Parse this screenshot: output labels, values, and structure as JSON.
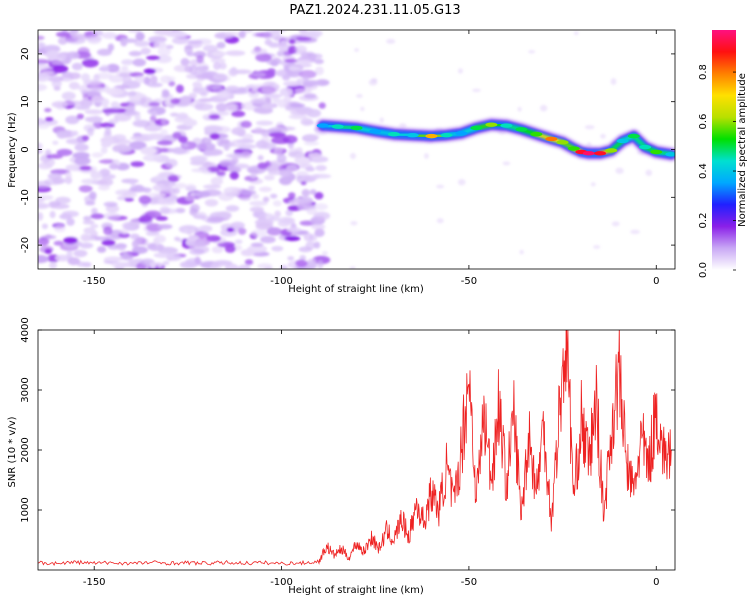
{
  "title": "PAZ1.2024.231.11.05.G13",
  "chart_data": [
    {
      "type": "heatmap",
      "title": "PAZ1.2024.231.11.05.G13",
      "xlabel": "Height of straight line (km)",
      "ylabel": "Frequency (Hz)",
      "xlim": [
        -165,
        5
      ],
      "ylim": [
        -25,
        25
      ],
      "x_ticks": [
        -150,
        -100,
        -50,
        0
      ],
      "y_ticks": [
        -20,
        -10,
        0,
        10,
        20
      ],
      "colorbar": {
        "label": "Normalized spectral amplitude",
        "range": [
          0.0,
          0.97
        ],
        "ticks": [
          0.0,
          0.2,
          0.4,
          0.6,
          0.8
        ],
        "colors": [
          "#ffffff",
          "#c9a8f5",
          "#8a20e8",
          "#2020ff",
          "#00a8ff",
          "#00e0d0",
          "#00e000",
          "#b8e000",
          "#ffe000",
          "#ff8000",
          "#ff1010",
          "#ff1080"
        ]
      },
      "noise_region": {
        "x_range": [
          -165,
          -89
        ],
        "y_range": [
          -25,
          25
        ],
        "typical_amplitude": 0.08
      },
      "signal_track": {
        "x": [
          -89,
          -85,
          -80,
          -75,
          -70,
          -65,
          -60,
          -56,
          -52,
          -48,
          -44,
          -40,
          -36,
          -32,
          -28,
          -25,
          -22,
          -20,
          -18,
          -15,
          -12,
          -9,
          -6,
          -3,
          0,
          4
        ],
        "frequency": [
          5.0,
          4.8,
          4.5,
          3.8,
          3.2,
          3.0,
          2.8,
          3.0,
          3.4,
          4.5,
          5.2,
          5.0,
          4.2,
          3.2,
          2.2,
          1.5,
          0.2,
          -0.5,
          -0.8,
          -0.8,
          -0.2,
          1.8,
          2.8,
          0.5,
          -0.5,
          -1.0
        ],
        "amplitude": [
          0.35,
          0.45,
          0.5,
          0.35,
          0.45,
          0.4,
          0.75,
          0.45,
          0.35,
          0.5,
          0.6,
          0.45,
          0.5,
          0.55,
          0.8,
          0.6,
          0.55,
          0.9,
          0.95,
          0.9,
          0.6,
          0.4,
          0.5,
          0.45,
          0.55,
          0.4
        ]
      }
    },
    {
      "type": "line",
      "xlabel": "Height of straight line (km)",
      "ylabel": "SNR (10 * v/v)",
      "xlim": [
        -165,
        5
      ],
      "ylim": [
        0,
        4000
      ],
      "x_ticks": [
        -150,
        -100,
        -50,
        0
      ],
      "y_ticks": [
        1000,
        2000,
        3000,
        4000
      ],
      "color": "#ee2222",
      "series": [
        {
          "x": [
            -165,
            -160,
            -155,
            -150,
            -145,
            -140,
            -135,
            -130,
            -125,
            -120,
            -115,
            -110,
            -105,
            -100,
            -95,
            -90,
            -88,
            -86,
            -84,
            -82,
            -80,
            -78,
            -76,
            -74,
            -72,
            -70,
            -68,
            -66,
            -64,
            -62,
            -60,
            -58,
            -56,
            -54,
            -52,
            -50,
            -48,
            -46,
            -44,
            -42,
            -40,
            -38,
            -36,
            -34,
            -32,
            -30,
            -28,
            -26,
            -24,
            -22,
            -20,
            -18,
            -16,
            -14,
            -12,
            -10,
            -8,
            -6,
            -4,
            -2,
            0,
            2,
            4
          ],
          "values": [
            120,
            110,
            130,
            115,
            120,
            110,
            125,
            115,
            120,
            110,
            125,
            115,
            120,
            110,
            115,
            140,
            400,
            250,
            350,
            200,
            450,
            300,
            550,
            350,
            650,
            500,
            850,
            550,
            1100,
            800,
            1300,
            1000,
            1700,
            1100,
            2000,
            3300,
            1200,
            2600,
            1500,
            2800,
            1400,
            2600,
            900,
            2300,
            1300,
            2400,
            800,
            2500,
            4000,
            1200,
            2500,
            1800,
            2800,
            900,
            2300,
            3350,
            1800,
            1300,
            2200,
            1700,
            2700,
            1900,
            2000
          ]
        }
      ]
    }
  ]
}
